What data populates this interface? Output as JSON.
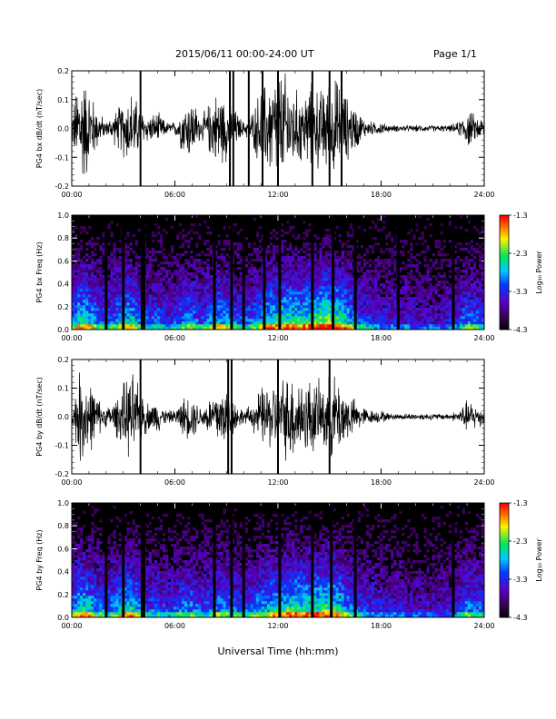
{
  "header": {
    "title": "2015/06/11  00:00-24:00 UT",
    "page": "Page 1/1"
  },
  "xaxis_label": "Universal Time (hh:mm)",
  "chart_data": [
    {
      "type": "line",
      "ylabel": "PG4 bx dB/dt (nT/sec)",
      "xlabel": "",
      "xlim": [
        "00:00",
        "24:00"
      ],
      "ylim": [
        -0.2,
        0.2
      ],
      "x_ticks": [
        "00:00",
        "06:00",
        "12:00",
        "18:00",
        "24:00"
      ],
      "y_ticks": [
        "-0.2",
        "-0.1",
        "0.0",
        "0.1",
        "0.2"
      ],
      "grid": false,
      "series_color": "#000000",
      "activity_envelope": {
        "hours": [
          0,
          0.5,
          1,
          1.5,
          2,
          2.5,
          3,
          3.5,
          4,
          4.5,
          5,
          5.5,
          6,
          6.5,
          7,
          7.5,
          8,
          8.5,
          9,
          9.5,
          10,
          10.5,
          11,
          11.5,
          12,
          12.5,
          13,
          13.5,
          14,
          14.5,
          15,
          15.5,
          16,
          16.5,
          17,
          17.5,
          18,
          18.5,
          19,
          19.5,
          20,
          20.5,
          21,
          21.5,
          22,
          22.5,
          23,
          23.5,
          24
        ],
        "amplitude": [
          0.04,
          0.2,
          0.13,
          0.06,
          0.02,
          0.05,
          0.09,
          0.12,
          0.06,
          0.04,
          0.05,
          0.02,
          0.02,
          0.08,
          0.1,
          0.03,
          0.08,
          0.12,
          0.1,
          0.06,
          0.02,
          0.05,
          0.13,
          0.15,
          0.18,
          0.17,
          0.12,
          0.11,
          0.14,
          0.12,
          0.16,
          0.15,
          0.1,
          0.07,
          0.03,
          0.02,
          0.02,
          0.01,
          0.01,
          0.01,
          0.01,
          0.01,
          0.01,
          0.01,
          0.01,
          0.02,
          0.06,
          0.04,
          0.03
        ]
      },
      "data_gaps_hours": [
        4.0,
        9.2,
        9.4,
        10.3,
        11.1,
        12.0,
        14.0,
        15.0,
        15.7
      ]
    },
    {
      "type": "heatmap",
      "ylabel": "PG4 bx Freq (Hz)",
      "xlabel": "",
      "xlim": [
        "00:00",
        "24:00"
      ],
      "ylim": [
        0.0,
        1.0
      ],
      "x_ticks": [
        "00:00",
        "06:00",
        "12:00",
        "18:00",
        "24:00"
      ],
      "y_ticks": [
        "0.0",
        "0.2",
        "0.4",
        "0.6",
        "0.8",
        "1.0"
      ],
      "colorbar": {
        "label": "Log₁₀ Power",
        "range": [
          -4.3,
          -1.3
        ],
        "ticks": [
          "-1.3",
          "-2.3",
          "-3.3",
          "-4.3"
        ]
      },
      "activity_envelope": {
        "hours": [
          0,
          0.5,
          1,
          1.5,
          2,
          2.5,
          3,
          3.5,
          4,
          4.5,
          5,
          5.5,
          6,
          6.5,
          7,
          7.5,
          8,
          8.5,
          9,
          9.5,
          10,
          10.5,
          11,
          11.5,
          12,
          12.5,
          13,
          13.5,
          14,
          14.5,
          15,
          15.5,
          16,
          16.5,
          17,
          17.5,
          18,
          18.5,
          19,
          19.5,
          20,
          20.5,
          21,
          21.5,
          22,
          22.5,
          23,
          23.5,
          24
        ],
        "level": [
          0.6,
          0.8,
          0.75,
          0.6,
          0.5,
          0.6,
          0.7,
          0.75,
          0.55,
          0.5,
          0.55,
          0.45,
          0.5,
          0.6,
          0.65,
          0.5,
          0.6,
          0.7,
          0.65,
          0.55,
          0.5,
          0.55,
          0.7,
          0.75,
          0.8,
          0.85,
          0.8,
          0.8,
          0.85,
          0.95,
          0.95,
          0.9,
          0.75,
          0.6,
          0.5,
          0.45,
          0.4,
          0.4,
          0.4,
          0.4,
          0.35,
          0.35,
          0.35,
          0.35,
          0.4,
          0.45,
          0.6,
          0.55,
          0.5
        ]
      },
      "data_gaps_hours": [
        2.0,
        3.0,
        4.1,
        4.2,
        8.3,
        9.3,
        10.0,
        11.2,
        12.1,
        14.0,
        15.2,
        16.5,
        19.0,
        22.2
      ]
    },
    {
      "type": "line",
      "ylabel": "PG4 by dB/dt (nT/sec)",
      "xlabel": "",
      "xlim": [
        "00:00",
        "24:00"
      ],
      "ylim": [
        -0.2,
        0.2
      ],
      "x_ticks": [
        "00:00",
        "06:00",
        "12:00",
        "18:00",
        "24:00"
      ],
      "y_ticks": [
        "-0.2",
        "-0.1",
        "0.0",
        "0.1",
        "0.2"
      ],
      "grid": false,
      "series_color": "#000000",
      "activity_envelope": {
        "hours": [
          0,
          0.5,
          1,
          1.5,
          2,
          2.5,
          3,
          3.5,
          4,
          4.5,
          5,
          5.5,
          6,
          6.5,
          7,
          7.5,
          8,
          8.5,
          9,
          9.5,
          10,
          10.5,
          11,
          11.5,
          12,
          12.5,
          13,
          13.5,
          14,
          14.5,
          15,
          15.5,
          16,
          16.5,
          17,
          17.5,
          18,
          18.5,
          19,
          19.5,
          20,
          20.5,
          21,
          21.5,
          22,
          22.5,
          23,
          23.5,
          24
        ],
        "amplitude": [
          0.03,
          0.15,
          0.12,
          0.06,
          0.03,
          0.05,
          0.1,
          0.14,
          0.08,
          0.04,
          0.05,
          0.02,
          0.02,
          0.06,
          0.07,
          0.03,
          0.06,
          0.1,
          0.09,
          0.05,
          0.02,
          0.04,
          0.09,
          0.1,
          0.12,
          0.13,
          0.14,
          0.12,
          0.12,
          0.1,
          0.12,
          0.13,
          0.08,
          0.05,
          0.03,
          0.02,
          0.02,
          0.01,
          0.01,
          0.01,
          0.01,
          0.01,
          0.01,
          0.01,
          0.01,
          0.02,
          0.05,
          0.04,
          0.03
        ]
      },
      "data_gaps_hours": [
        4.0,
        9.1,
        9.3,
        12.0,
        15.0
      ]
    },
    {
      "type": "heatmap",
      "ylabel": "PG4 by Freq (Hz)",
      "xlabel": "",
      "xlim": [
        "00:00",
        "24:00"
      ],
      "ylim": [
        0.0,
        1.0
      ],
      "x_ticks": [
        "00:00",
        "06:00",
        "12:00",
        "18:00",
        "24:00"
      ],
      "y_ticks": [
        "0.0",
        "0.2",
        "0.4",
        "0.6",
        "0.8",
        "1.0"
      ],
      "colorbar": {
        "label": "Log₁₀ Power",
        "range": [
          -4.3,
          -1.3
        ],
        "ticks": [
          "-1.3",
          "-2.3",
          "-3.3",
          "-4.3"
        ]
      },
      "activity_envelope": {
        "hours": [
          0,
          0.5,
          1,
          1.5,
          2,
          2.5,
          3,
          3.5,
          4,
          4.5,
          5,
          5.5,
          6,
          6.5,
          7,
          7.5,
          8,
          8.5,
          9,
          9.5,
          10,
          10.5,
          11,
          11.5,
          12,
          12.5,
          13,
          13.5,
          14,
          14.5,
          15,
          15.5,
          16,
          16.5,
          17,
          17.5,
          18,
          18.5,
          19,
          19.5,
          20,
          20.5,
          21,
          21.5,
          22,
          22.5,
          23,
          23.5,
          24
        ],
        "level": [
          0.6,
          0.8,
          0.75,
          0.6,
          0.55,
          0.6,
          0.75,
          0.8,
          0.6,
          0.5,
          0.55,
          0.45,
          0.5,
          0.6,
          0.6,
          0.5,
          0.55,
          0.65,
          0.65,
          0.55,
          0.5,
          0.55,
          0.65,
          0.7,
          0.75,
          0.8,
          0.85,
          0.8,
          0.8,
          0.85,
          0.85,
          0.8,
          0.65,
          0.55,
          0.45,
          0.45,
          0.4,
          0.4,
          0.4,
          0.35,
          0.35,
          0.35,
          0.35,
          0.35,
          0.4,
          0.45,
          0.6,
          0.55,
          0.5
        ]
      },
      "data_gaps_hours": [
        2.0,
        3.0,
        4.1,
        4.2,
        8.3,
        9.3,
        10.0,
        12.1,
        14.0,
        15.1,
        16.5,
        22.2
      ]
    }
  ]
}
